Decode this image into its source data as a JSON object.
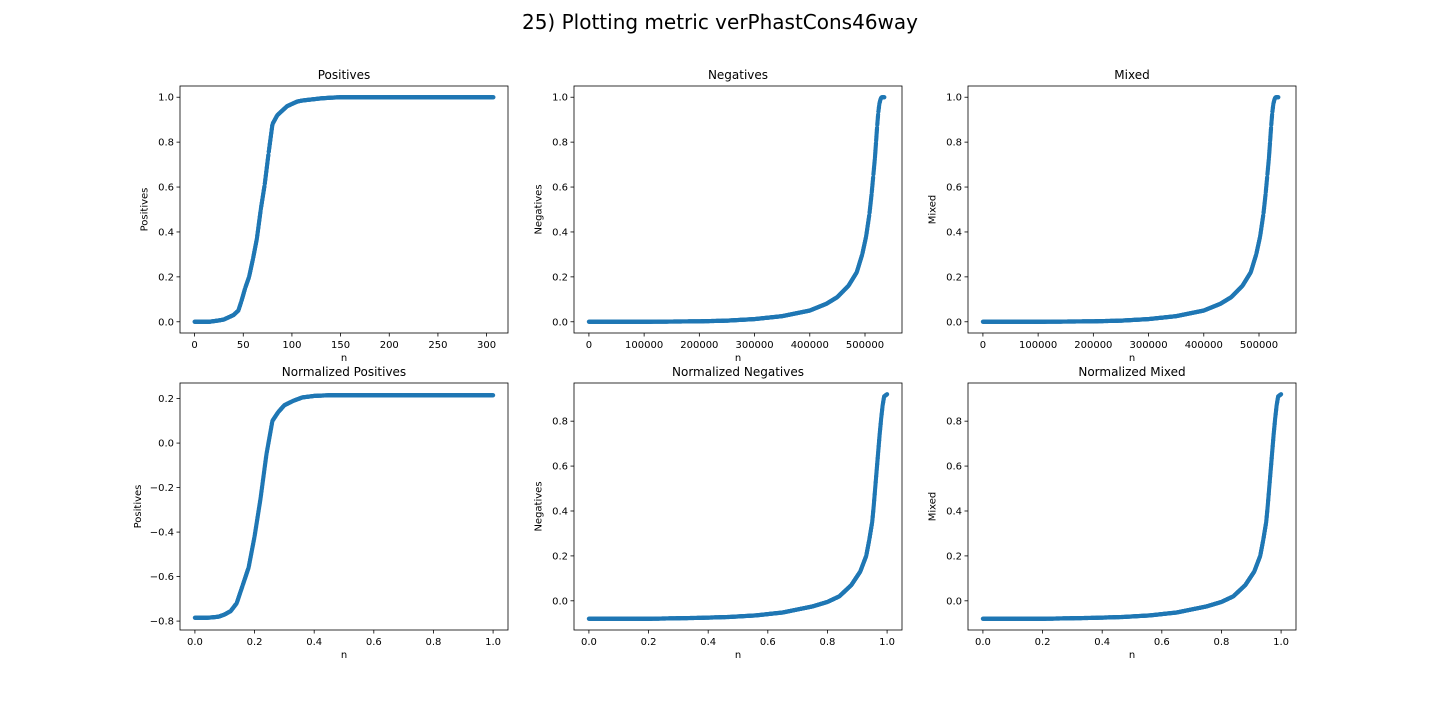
{
  "figure": {
    "suptitle": "25) Plotting metric verPhastCons46way",
    "marker_color": "#1f77b4"
  },
  "chart_data": [
    {
      "type": "scatter",
      "title": "Positives",
      "xlabel": "n",
      "ylabel": "Positives",
      "xlim": [
        -15,
        322
      ],
      "ylim": [
        -0.05,
        1.05
      ],
      "xticks": [
        0,
        50,
        100,
        150,
        200,
        250,
        300
      ],
      "xtick_labels": [
        "0",
        "50",
        "100",
        "150",
        "200",
        "250",
        "300"
      ],
      "yticks": [
        0.0,
        0.2,
        0.4,
        0.6,
        0.8,
        1.0
      ],
      "ytick_labels": [
        "0.0",
        "0.2",
        "0.4",
        "0.6",
        "0.8",
        "1.0"
      ],
      "grid": false,
      "x": [
        0,
        5,
        10,
        15,
        20,
        25,
        30,
        35,
        40,
        45,
        48,
        52,
        56,
        60,
        64,
        68,
        72,
        76,
        80,
        85,
        90,
        95,
        100,
        105,
        110,
        120,
        130,
        140,
        150,
        170,
        200,
        250,
        307
      ],
      "y": [
        0.0,
        0.0,
        0.0,
        0.0,
        0.003,
        0.006,
        0.01,
        0.02,
        0.03,
        0.05,
        0.09,
        0.15,
        0.2,
        0.28,
        0.37,
        0.5,
        0.61,
        0.75,
        0.88,
        0.92,
        0.94,
        0.96,
        0.97,
        0.98,
        0.985,
        0.99,
        0.995,
        0.998,
        1.0,
        1.0,
        1.0,
        1.0,
        1.0
      ]
    },
    {
      "type": "scatter",
      "title": "Negatives",
      "xlabel": "n",
      "ylabel": "Negatives",
      "xlim": [
        -27000,
        567000
      ],
      "ylim": [
        -0.05,
        1.05
      ],
      "xticks": [
        0,
        100000,
        200000,
        300000,
        400000,
        500000
      ],
      "xtick_labels": [
        "0",
        "100000",
        "200000",
        "300000",
        "400000",
        "500000"
      ],
      "yticks": [
        0.0,
        0.2,
        0.4,
        0.6,
        0.8,
        1.0
      ],
      "ytick_labels": [
        "0.0",
        "0.2",
        "0.4",
        "0.6",
        "0.8",
        "1.0"
      ],
      "grid": false,
      "x": [
        0,
        100000,
        200000,
        250000,
        300000,
        350000,
        400000,
        430000,
        450000,
        470000,
        485000,
        495000,
        502000,
        508000,
        512000,
        515000,
        518000,
        520000,
        522000,
        524000,
        526000,
        528000,
        530000,
        535000
      ],
      "y": [
        0.0,
        0.0,
        0.002,
        0.005,
        0.012,
        0.025,
        0.05,
        0.08,
        0.11,
        0.16,
        0.22,
        0.3,
        0.38,
        0.48,
        0.57,
        0.65,
        0.73,
        0.8,
        0.87,
        0.93,
        0.97,
        0.99,
        1.0,
        1.0
      ]
    },
    {
      "type": "scatter",
      "title": "Mixed",
      "xlabel": "n",
      "ylabel": "Mixed",
      "xlim": [
        -27000,
        567000
      ],
      "ylim": [
        -0.05,
        1.05
      ],
      "xticks": [
        0,
        100000,
        200000,
        300000,
        400000,
        500000
      ],
      "xtick_labels": [
        "0",
        "100000",
        "200000",
        "300000",
        "400000",
        "500000"
      ],
      "yticks": [
        0.0,
        0.2,
        0.4,
        0.6,
        0.8,
        1.0
      ],
      "ytick_labels": [
        "0.0",
        "0.2",
        "0.4",
        "0.6",
        "0.8",
        "1.0"
      ],
      "grid": false,
      "x": [
        0,
        100000,
        200000,
        250000,
        300000,
        350000,
        400000,
        430000,
        450000,
        470000,
        485000,
        495000,
        502000,
        508000,
        512000,
        515000,
        518000,
        520000,
        522000,
        524000,
        526000,
        528000,
        530000,
        535000
      ],
      "y": [
        0.0,
        0.0,
        0.002,
        0.005,
        0.012,
        0.025,
        0.05,
        0.08,
        0.11,
        0.16,
        0.22,
        0.3,
        0.38,
        0.48,
        0.57,
        0.65,
        0.73,
        0.8,
        0.87,
        0.93,
        0.97,
        0.99,
        1.0,
        1.0
      ]
    },
    {
      "type": "scatter",
      "title": "Normalized Positives",
      "xlabel": "n",
      "ylabel": "Positives",
      "xlim": [
        -0.05,
        1.05
      ],
      "ylim": [
        -0.84,
        0.27
      ],
      "xticks": [
        0.0,
        0.2,
        0.4,
        0.6,
        0.8,
        1.0
      ],
      "xtick_labels": [
        "0.0",
        "0.2",
        "0.4",
        "0.6",
        "0.8",
        "1.0"
      ],
      "yticks": [
        -0.8,
        -0.6,
        -0.4,
        -0.2,
        0.0,
        0.2
      ],
      "ytick_labels": [
        "−0.8",
        "−0.6",
        "−0.4",
        "−0.2",
        "0.0",
        "0.2"
      ],
      "grid": false,
      "x": [
        0.0,
        0.02,
        0.04,
        0.06,
        0.08,
        0.1,
        0.12,
        0.14,
        0.16,
        0.18,
        0.2,
        0.22,
        0.24,
        0.26,
        0.28,
        0.3,
        0.33,
        0.36,
        0.4,
        0.45,
        0.5,
        0.6,
        0.7,
        0.8,
        0.9,
        1.0
      ],
      "y": [
        -0.785,
        -0.785,
        -0.785,
        -0.783,
        -0.78,
        -0.77,
        -0.755,
        -0.72,
        -0.64,
        -0.56,
        -0.42,
        -0.25,
        -0.05,
        0.1,
        0.14,
        0.17,
        0.19,
        0.205,
        0.212,
        0.215,
        0.215,
        0.215,
        0.215,
        0.215,
        0.215,
        0.215
      ]
    },
    {
      "type": "scatter",
      "title": "Normalized Negatives",
      "xlabel": "n",
      "ylabel": "Negatives",
      "xlim": [
        -0.05,
        1.05
      ],
      "ylim": [
        -0.13,
        0.97
      ],
      "xticks": [
        0.0,
        0.2,
        0.4,
        0.6,
        0.8,
        1.0
      ],
      "xtick_labels": [
        "0.0",
        "0.2",
        "0.4",
        "0.6",
        "0.8",
        "1.0"
      ],
      "yticks": [
        0.0,
        0.2,
        0.4,
        0.6,
        0.8
      ],
      "ytick_labels": [
        "0.0",
        "0.2",
        "0.4",
        "0.6",
        "0.8"
      ],
      "grid": false,
      "x": [
        0.0,
        0.2,
        0.37,
        0.47,
        0.56,
        0.65,
        0.75,
        0.8,
        0.84,
        0.88,
        0.91,
        0.93,
        0.94,
        0.95,
        0.955,
        0.96,
        0.965,
        0.97,
        0.975,
        0.98,
        0.985,
        0.99,
        1.0
      ],
      "y": [
        -0.08,
        -0.08,
        -0.076,
        -0.072,
        -0.065,
        -0.052,
        -0.025,
        -0.005,
        0.02,
        0.07,
        0.13,
        0.2,
        0.27,
        0.35,
        0.42,
        0.5,
        0.58,
        0.66,
        0.74,
        0.81,
        0.87,
        0.91,
        0.92
      ]
    },
    {
      "type": "scatter",
      "title": "Normalized Mixed",
      "xlabel": "n",
      "ylabel": "Mixed",
      "xlim": [
        -0.05,
        1.05
      ],
      "ylim": [
        -0.13,
        0.97
      ],
      "xticks": [
        0.0,
        0.2,
        0.4,
        0.6,
        0.8,
        1.0
      ],
      "xtick_labels": [
        "0.0",
        "0.2",
        "0.4",
        "0.6",
        "0.8",
        "1.0"
      ],
      "yticks": [
        0.0,
        0.2,
        0.4,
        0.6,
        0.8
      ],
      "ytick_labels": [
        "0.0",
        "0.2",
        "0.4",
        "0.6",
        "0.8"
      ],
      "grid": false,
      "x": [
        0.0,
        0.2,
        0.37,
        0.47,
        0.56,
        0.65,
        0.75,
        0.8,
        0.84,
        0.88,
        0.91,
        0.93,
        0.94,
        0.95,
        0.955,
        0.96,
        0.965,
        0.97,
        0.975,
        0.98,
        0.985,
        0.99,
        1.0
      ],
      "y": [
        -0.08,
        -0.08,
        -0.076,
        -0.072,
        -0.065,
        -0.052,
        -0.025,
        -0.005,
        0.02,
        0.07,
        0.13,
        0.2,
        0.27,
        0.35,
        0.42,
        0.5,
        0.58,
        0.66,
        0.74,
        0.81,
        0.87,
        0.91,
        0.92
      ]
    }
  ]
}
